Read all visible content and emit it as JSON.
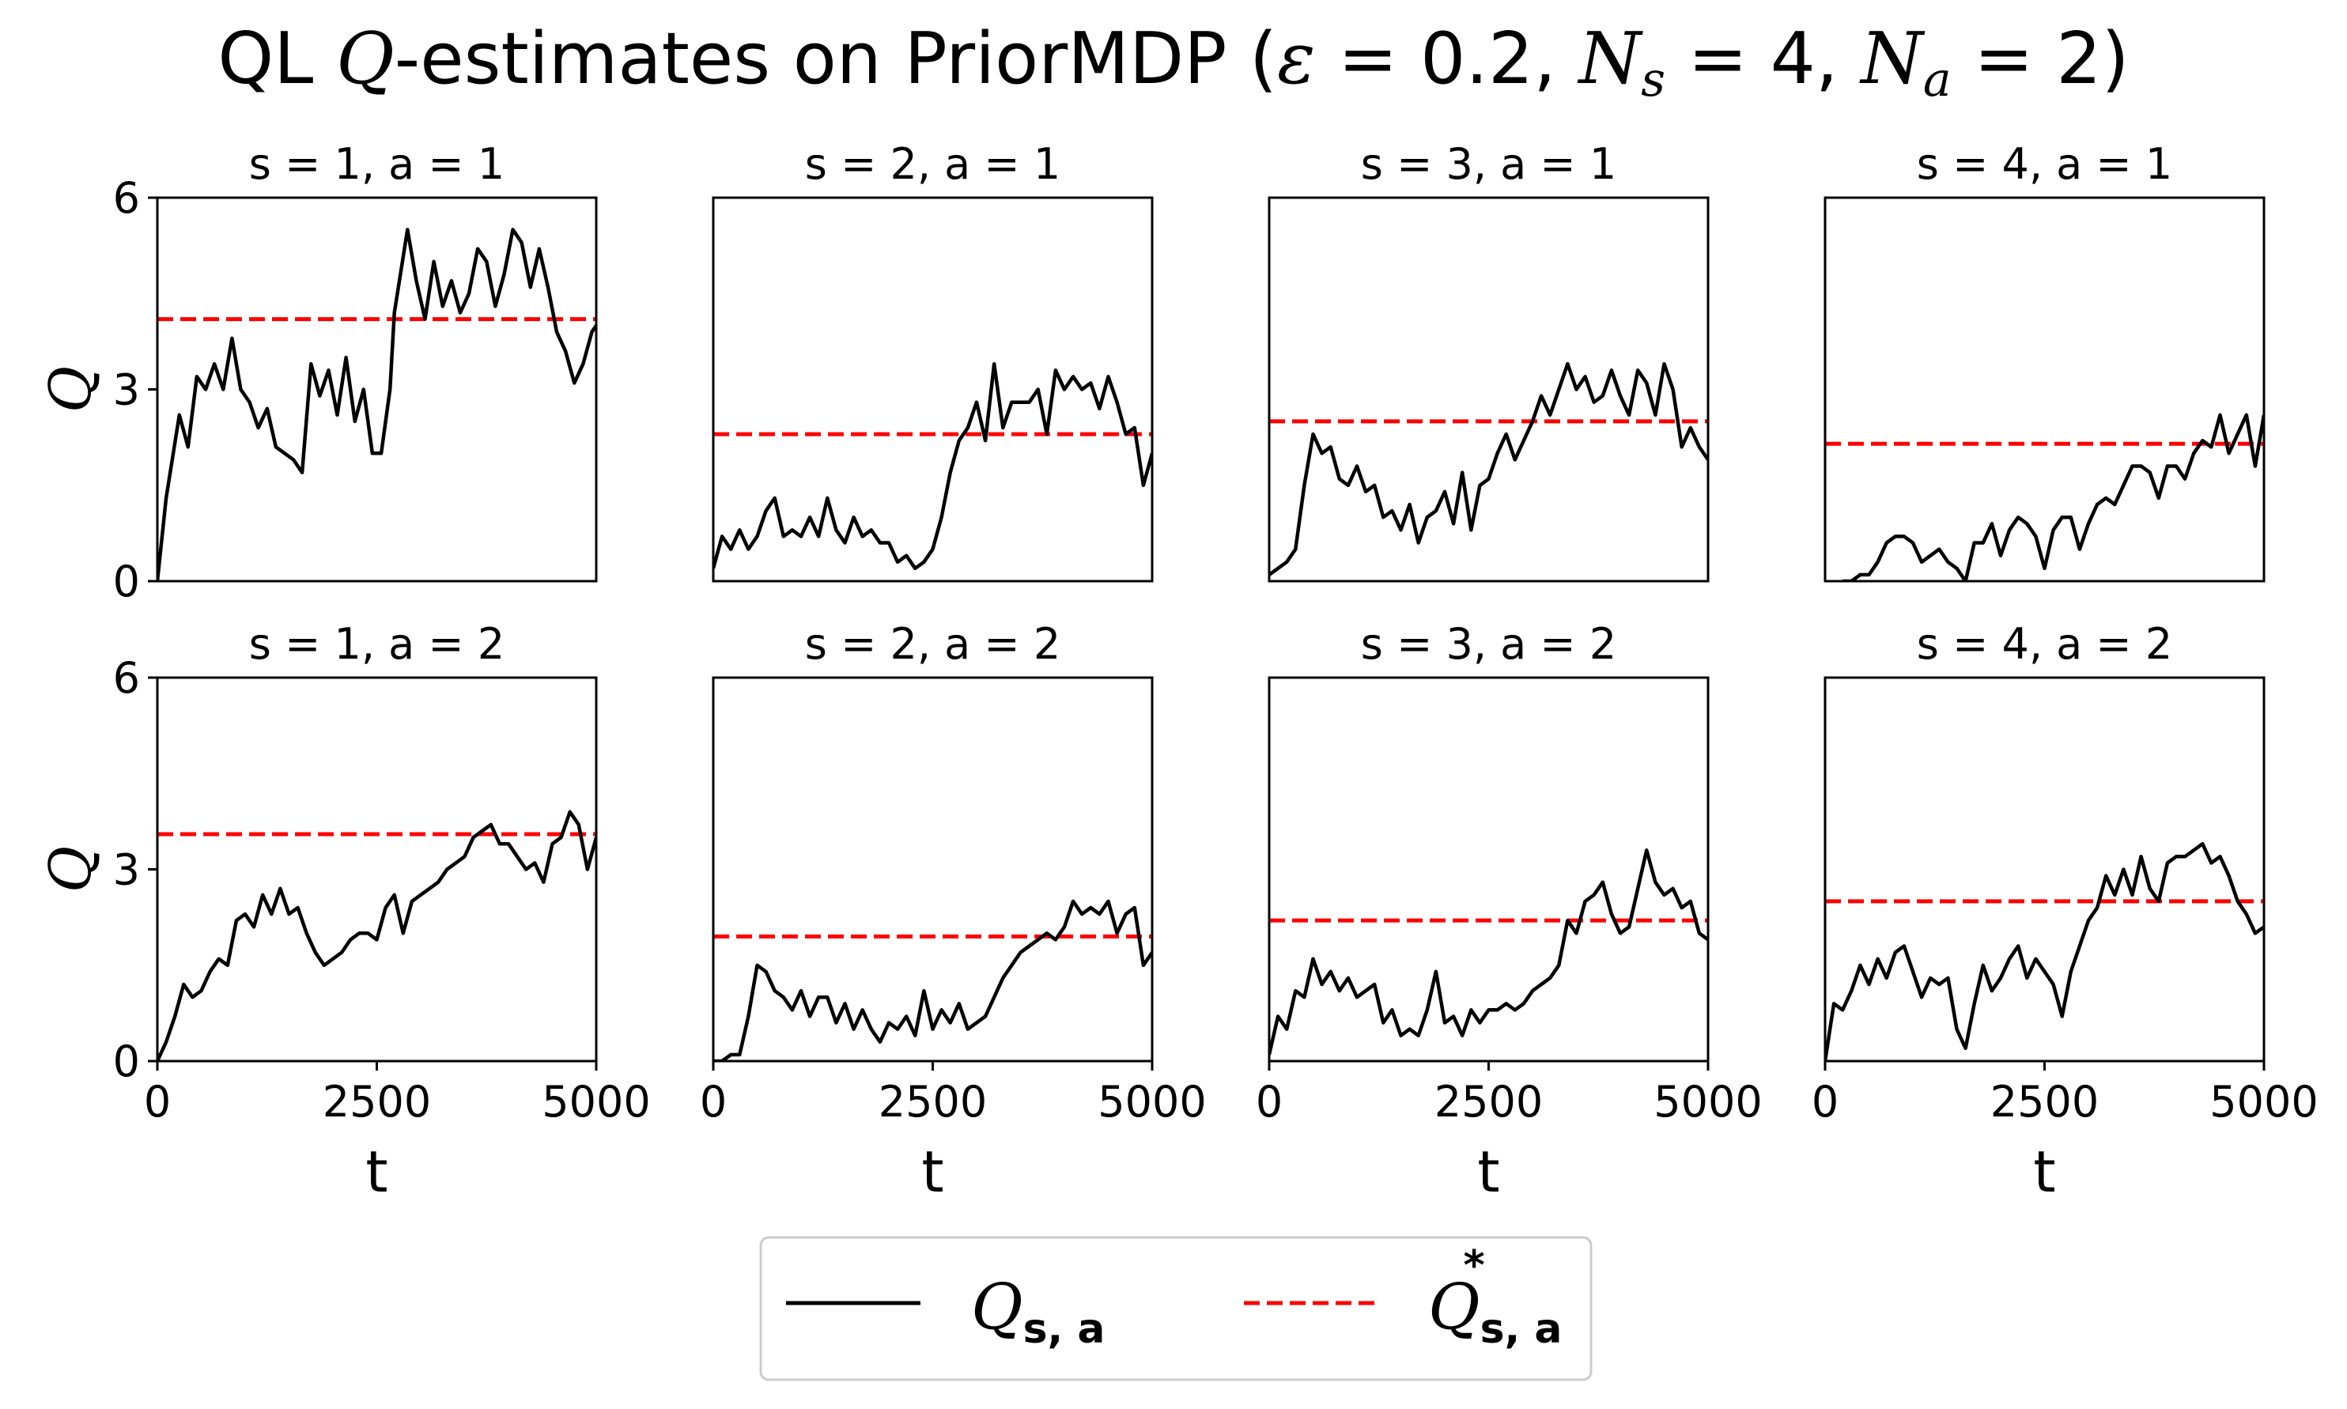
{
  "chart_data": {
    "type": "line",
    "title": {
      "prefix": "QL ",
      "q": "Q",
      "middle": "-estimates on PriorMDP (",
      "eps": "ε",
      "eps_val": " = 0.2, ",
      "ns": "N",
      "ns_sub": "s",
      "ns_val": " = 4, ",
      "na": "N",
      "na_sub": "a",
      "na_val": " = 2)"
    },
    "xlabel": "t",
    "ylabel": "Q",
    "xlim": [
      0,
      5000
    ],
    "ylim": [
      0,
      6
    ],
    "xticks": [
      "0",
      "2500",
      "5000"
    ],
    "yticks": [
      "0",
      "3",
      "6"
    ],
    "grid": false,
    "legend": {
      "placement": "bottom-center",
      "entries": [
        {
          "name": "Q",
          "sub": "s, a",
          "sup": "",
          "style": "solid",
          "color": "#000000"
        },
        {
          "name": "Q",
          "sub": "s, a",
          "sup": "*",
          "style": "dashed",
          "color": "#ff0000"
        }
      ]
    },
    "panels": [
      {
        "title": "s = 1, a = 1",
        "qstar": 4.1,
        "x": [
          0,
          100,
          250,
          350,
          450,
          550,
          650,
          750,
          850,
          950,
          1050,
          1150,
          1250,
          1350,
          1450,
          1550,
          1650,
          1750,
          1850,
          1950,
          2050,
          2150,
          2250,
          2350,
          2450,
          2550,
          2650,
          2700,
          2850,
          2950,
          3050,
          3150,
          3250,
          3350,
          3450,
          3550,
          3650,
          3750,
          3850,
          3950,
          4050,
          4150,
          4250,
          4350,
          4450,
          4550,
          4650,
          4750,
          4850,
          4950,
          5000
        ],
        "y": [
          0,
          1.3,
          2.6,
          2.1,
          3.2,
          3.0,
          3.4,
          3.0,
          3.8,
          3.0,
          2.8,
          2.4,
          2.7,
          2.1,
          2.0,
          1.9,
          1.7,
          3.4,
          2.9,
          3.3,
          2.6,
          3.5,
          2.5,
          3.0,
          2.0,
          2.0,
          3.0,
          4.2,
          5.5,
          4.7,
          4.1,
          5.0,
          4.3,
          4.7,
          4.2,
          4.5,
          5.2,
          5.0,
          4.3,
          4.8,
          5.5,
          5.3,
          4.6,
          5.2,
          4.6,
          3.9,
          3.6,
          3.1,
          3.4,
          3.9,
          4.0
        ]
      },
      {
        "title": "s = 2, a = 1",
        "qstar": 2.3,
        "x": [
          0,
          100,
          200,
          300,
          400,
          500,
          600,
          700,
          800,
          900,
          1000,
          1100,
          1200,
          1300,
          1400,
          1500,
          1600,
          1700,
          1800,
          1900,
          2000,
          2100,
          2200,
          2300,
          2400,
          2500,
          2600,
          2700,
          2800,
          2900,
          3000,
          3100,
          3200,
          3300,
          3400,
          3500,
          3600,
          3700,
          3800,
          3900,
          4000,
          4100,
          4200,
          4300,
          4400,
          4500,
          4600,
          4700,
          4800,
          4900,
          5000
        ],
        "y": [
          0.2,
          0.7,
          0.5,
          0.8,
          0.5,
          0.7,
          1.1,
          1.3,
          0.7,
          0.8,
          0.7,
          1.0,
          0.7,
          1.3,
          0.8,
          0.6,
          1.0,
          0.7,
          0.8,
          0.6,
          0.6,
          0.3,
          0.4,
          0.2,
          0.3,
          0.5,
          1.0,
          1.7,
          2.2,
          2.4,
          2.8,
          2.2,
          3.4,
          2.4,
          2.8,
          2.8,
          2.8,
          3.0,
          2.3,
          3.3,
          3.0,
          3.2,
          3.0,
          3.1,
          2.7,
          3.2,
          2.8,
          2.3,
          2.4,
          1.5,
          2.0
        ]
      },
      {
        "title": "s = 3, a = 1",
        "qstar": 2.5,
        "x": [
          0,
          100,
          200,
          300,
          400,
          500,
          600,
          700,
          800,
          900,
          1000,
          1100,
          1200,
          1300,
          1400,
          1500,
          1600,
          1700,
          1800,
          1900,
          2000,
          2100,
          2200,
          2300,
          2400,
          2500,
          2600,
          2700,
          2800,
          2900,
          3000,
          3100,
          3200,
          3300,
          3400,
          3500,
          3600,
          3700,
          3800,
          3900,
          4000,
          4100,
          4200,
          4300,
          4400,
          4500,
          4600,
          4700,
          4800,
          4900,
          5000
        ],
        "y": [
          0.1,
          0.2,
          0.3,
          0.5,
          1.5,
          2.3,
          2.0,
          2.1,
          1.6,
          1.5,
          1.8,
          1.4,
          1.5,
          1.0,
          1.1,
          0.8,
          1.2,
          0.6,
          1.0,
          1.1,
          1.4,
          0.9,
          1.7,
          0.8,
          1.5,
          1.6,
          2.0,
          2.3,
          1.9,
          2.2,
          2.5,
          2.9,
          2.6,
          3.0,
          3.4,
          3.0,
          3.2,
          2.8,
          2.9,
          3.3,
          2.9,
          2.6,
          3.3,
          3.1,
          2.6,
          3.4,
          3.0,
          2.1,
          2.4,
          2.1,
          1.9
        ]
      },
      {
        "title": "s = 4, a = 1",
        "qstar": 2.15,
        "x": [
          200,
          300,
          400,
          500,
          600,
          700,
          800,
          900,
          1000,
          1100,
          1200,
          1300,
          1400,
          1500,
          1600,
          1700,
          1800,
          1900,
          2000,
          2100,
          2200,
          2300,
          2400,
          2500,
          2600,
          2700,
          2800,
          2900,
          3000,
          3100,
          3200,
          3300,
          3400,
          3500,
          3600,
          3700,
          3800,
          3900,
          4000,
          4100,
          4200,
          4300,
          4400,
          4500,
          4600,
          4700,
          4800,
          4900,
          5000
        ],
        "y": [
          0.0,
          0.0,
          0.1,
          0.1,
          0.3,
          0.6,
          0.7,
          0.7,
          0.6,
          0.3,
          0.4,
          0.5,
          0.3,
          0.2,
          0.0,
          0.6,
          0.6,
          0.9,
          0.4,
          0.8,
          1.0,
          0.9,
          0.7,
          0.2,
          0.8,
          1.0,
          1.0,
          0.5,
          0.9,
          1.2,
          1.3,
          1.2,
          1.5,
          1.8,
          1.8,
          1.7,
          1.3,
          1.8,
          1.8,
          1.6,
          2.0,
          2.2,
          2.1,
          2.6,
          2.0,
          2.3,
          2.6,
          1.8,
          2.6
        ]
      },
      {
        "title": "s = 1, a = 2",
        "qstar": 3.55,
        "x": [
          0,
          100,
          200,
          300,
          400,
          500,
          600,
          700,
          800,
          900,
          1000,
          1100,
          1200,
          1300,
          1400,
          1500,
          1600,
          1700,
          1800,
          1900,
          2000,
          2100,
          2200,
          2300,
          2400,
          2500,
          2600,
          2700,
          2800,
          2900,
          3000,
          3100,
          3200,
          3300,
          3400,
          3500,
          3600,
          3700,
          3800,
          3900,
          4000,
          4100,
          4200,
          4300,
          4400,
          4500,
          4600,
          4700,
          4800,
          4900,
          5000
        ],
        "y": [
          0,
          0.3,
          0.7,
          1.2,
          1.0,
          1.1,
          1.4,
          1.6,
          1.5,
          2.2,
          2.3,
          2.1,
          2.6,
          2.3,
          2.7,
          2.3,
          2.4,
          2.0,
          1.7,
          1.5,
          1.6,
          1.7,
          1.9,
          2.0,
          2.0,
          1.9,
          2.4,
          2.6,
          2.0,
          2.5,
          2.6,
          2.7,
          2.8,
          3.0,
          3.1,
          3.2,
          3.5,
          3.6,
          3.7,
          3.4,
          3.4,
          3.2,
          3.0,
          3.1,
          2.8,
          3.4,
          3.5,
          3.9,
          3.7,
          3.0,
          3.5
        ]
      },
      {
        "title": "s = 2, a = 2",
        "qstar": 1.95,
        "x": [
          0,
          100,
          200,
          300,
          400,
          500,
          600,
          700,
          800,
          900,
          1000,
          1100,
          1200,
          1300,
          1400,
          1500,
          1600,
          1700,
          1800,
          1900,
          2000,
          2100,
          2200,
          2300,
          2400,
          2500,
          2600,
          2700,
          2800,
          2900,
          3000,
          3100,
          3200,
          3300,
          3400,
          3500,
          3600,
          3700,
          3800,
          3900,
          4000,
          4100,
          4200,
          4300,
          4400,
          4500,
          4600,
          4700,
          4800,
          4900,
          5000
        ],
        "y": [
          0,
          0,
          0.1,
          0.1,
          0.7,
          1.5,
          1.4,
          1.1,
          1.0,
          0.8,
          1.1,
          0.7,
          1.0,
          1.0,
          0.6,
          0.9,
          0.5,
          0.8,
          0.5,
          0.3,
          0.6,
          0.5,
          0.7,
          0.4,
          1.1,
          0.5,
          0.8,
          0.6,
          0.9,
          0.5,
          0.6,
          0.7,
          1.0,
          1.3,
          1.5,
          1.7,
          1.8,
          1.9,
          2.0,
          1.9,
          2.1,
          2.5,
          2.3,
          2.4,
          2.3,
          2.5,
          2.0,
          2.3,
          2.4,
          1.5,
          1.7
        ]
      },
      {
        "title": "s = 3, a = 2",
        "qstar": 2.2,
        "x": [
          0,
          100,
          200,
          300,
          400,
          500,
          600,
          700,
          800,
          900,
          1000,
          1100,
          1200,
          1300,
          1400,
          1500,
          1600,
          1700,
          1800,
          1900,
          2000,
          2100,
          2200,
          2300,
          2400,
          2500,
          2600,
          2700,
          2800,
          2900,
          3000,
          3100,
          3200,
          3300,
          3400,
          3500,
          3600,
          3700,
          3800,
          3900,
          4000,
          4100,
          4200,
          4300,
          4400,
          4500,
          4600,
          4700,
          4800,
          4900,
          5000
        ],
        "y": [
          0.1,
          0.7,
          0.5,
          1.1,
          1.0,
          1.6,
          1.2,
          1.4,
          1.1,
          1.3,
          1.0,
          1.1,
          1.2,
          0.6,
          0.8,
          0.4,
          0.5,
          0.4,
          0.8,
          1.4,
          0.6,
          0.7,
          0.4,
          0.8,
          0.6,
          0.8,
          0.8,
          0.9,
          0.8,
          0.9,
          1.1,
          1.2,
          1.3,
          1.5,
          2.2,
          2.0,
          2.5,
          2.6,
          2.8,
          2.3,
          2.0,
          2.1,
          2.7,
          3.3,
          2.8,
          2.6,
          2.7,
          2.4,
          2.5,
          2.0,
          1.9
        ]
      },
      {
        "title": "s = 4, a = 2",
        "qstar": 2.5,
        "x": [
          0,
          100,
          200,
          300,
          400,
          500,
          600,
          700,
          800,
          900,
          1000,
          1100,
          1200,
          1300,
          1400,
          1500,
          1600,
          1700,
          1800,
          1900,
          2000,
          2100,
          2200,
          2300,
          2400,
          2500,
          2600,
          2700,
          2800,
          2900,
          3000,
          3100,
          3200,
          3300,
          3400,
          3500,
          3600,
          3700,
          3800,
          3900,
          4000,
          4100,
          4200,
          4300,
          4400,
          4500,
          4600,
          4700,
          4800,
          4900,
          5000
        ],
        "y": [
          0,
          0.9,
          0.8,
          1.1,
          1.5,
          1.2,
          1.6,
          1.3,
          1.7,
          1.8,
          1.4,
          1.0,
          1.3,
          1.2,
          1.3,
          0.5,
          0.2,
          0.9,
          1.5,
          1.1,
          1.3,
          1.6,
          1.8,
          1.3,
          1.6,
          1.4,
          1.2,
          0.7,
          1.4,
          1.8,
          2.2,
          2.4,
          2.9,
          2.6,
          3.0,
          2.6,
          3.2,
          2.7,
          2.5,
          3.1,
          3.2,
          3.2,
          3.3,
          3.4,
          3.1,
          3.2,
          2.9,
          2.5,
          2.3,
          2.0,
          2.1
        ]
      }
    ]
  }
}
